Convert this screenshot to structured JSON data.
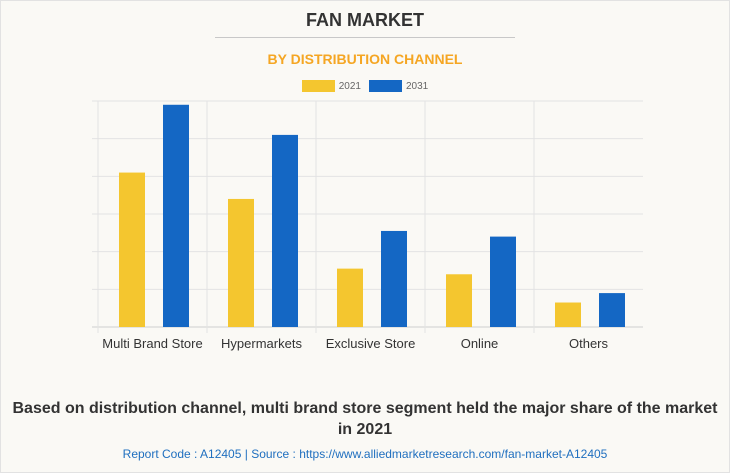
{
  "chart_data": {
    "type": "bar",
    "title": "FAN MARKET",
    "subtitle": "BY DISTRIBUTION CHANNEL",
    "categories": [
      "Multi Brand Store",
      "Hypermarkets",
      "Exclusive Store",
      "Online",
      "Others"
    ],
    "series": [
      {
        "name": "2021",
        "color": "#f4c62f",
        "values": [
          4.1,
          3.4,
          1.55,
          1.4,
          0.65
        ]
      },
      {
        "name": "2031",
        "color": "#1467c4",
        "values": [
          5.9,
          5.1,
          2.55,
          2.4,
          0.9
        ]
      }
    ],
    "xlabel": "",
    "ylabel": "",
    "ylim": [
      0,
      6
    ],
    "grid": true,
    "legend": "top-center"
  },
  "footer": {
    "note": "Based on distribution channel, multi brand store segment held the major share of the market in 2021",
    "source": "Report Code : A12405  |  Source : https://www.alliedmarketresearch.com/fan-market-A12405"
  }
}
